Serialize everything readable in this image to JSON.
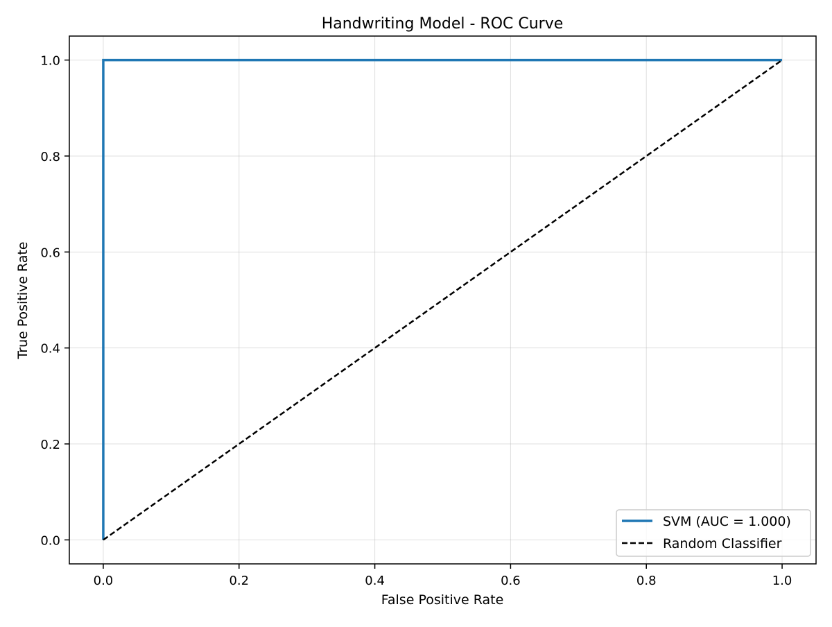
{
  "chart_data": {
    "type": "line",
    "title": "Handwriting Model - ROC Curve",
    "xlabel": "False Positive Rate",
    "ylabel": "True Positive Rate",
    "xlim": [
      -0.05,
      1.05
    ],
    "ylim": [
      -0.05,
      1.05
    ],
    "xticks": [
      0.0,
      0.2,
      0.4,
      0.6,
      0.8,
      1.0
    ],
    "yticks": [
      0.0,
      0.2,
      0.4,
      0.6,
      0.8,
      1.0
    ],
    "xtick_labels": [
      "0.0",
      "0.2",
      "0.4",
      "0.6",
      "0.8",
      "1.0"
    ],
    "ytick_labels": [
      "0.0",
      "0.2",
      "0.4",
      "0.6",
      "0.8",
      "1.0"
    ],
    "grid": true,
    "legend_position": "lower-right",
    "series": [
      {
        "name": "SVM (AUC = 1.000)",
        "style": "solid",
        "color": "#1f77b4",
        "x": [
          0.0,
          0.0,
          1.0
        ],
        "y": [
          0.0,
          1.0,
          1.0
        ]
      },
      {
        "name": "Random Classifier",
        "style": "dashed",
        "color": "#000000",
        "x": [
          0.0,
          1.0
        ],
        "y": [
          0.0,
          1.0
        ]
      }
    ]
  }
}
